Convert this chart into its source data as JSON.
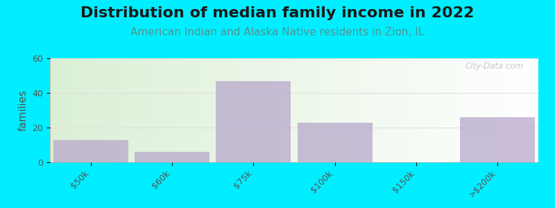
{
  "title": "Distribution of median family income in 2022",
  "subtitle": "American Indian and Alaska Native residents in Zion, IL",
  "categories": [
    "$50k",
    "$60k",
    "$75k",
    "$100k",
    "$150k",
    ">$200k"
  ],
  "values": [
    13,
    6,
    47,
    23,
    0,
    26
  ],
  "bar_color": "#b8a8cc",
  "bar_alpha": 0.75,
  "ylabel": "families",
  "ylim": [
    0,
    60
  ],
  "yticks": [
    0,
    20,
    40,
    60
  ],
  "background_outer": "#00eeff",
  "plot_bg_color_topleft": "#d8edd8",
  "plot_bg_color_topright": "#f0f8f0",
  "plot_bg_color_bottomleft": "#e8f5e0",
  "plot_bg_color_bottomright": "#ffffff",
  "grid_color": "#dddddd",
  "title_fontsize": 16,
  "subtitle_fontsize": 11,
  "subtitle_color": "#5a9090",
  "watermark": "City-Data.com",
  "ylabel_fontsize": 11,
  "tick_fontsize": 9,
  "tick_color": "#555555"
}
